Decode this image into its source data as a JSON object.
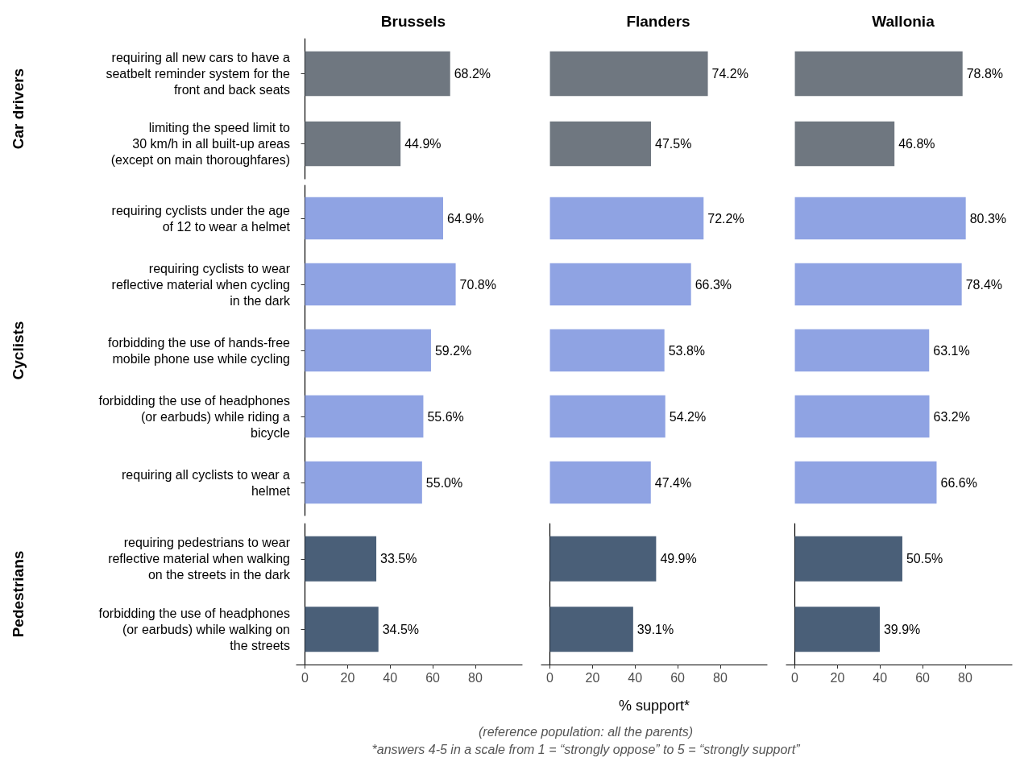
{
  "chart_data": [
    {
      "type": "bar",
      "orientation": "horizontal",
      "title": "Brussels",
      "ylabel": "Car drivers",
      "tick_labels": "y",
      "categories": [
        "requiring all new cars to have a\nseatbelt reminder system for the\nfront and back seats",
        "limiting the speed limit to\n30 km/h in all built-up areas\n(except on main thoroughfares)"
      ],
      "series": [
        {
          "color": "#6f7780",
          "values": [
            68.2,
            44.9
          ],
          "value_labels": [
            "68.2%",
            "44.9%"
          ]
        }
      ]
    },
    {
      "type": "bar",
      "orientation": "horizontal",
      "title": "Flanders",
      "tick_labels": false,
      "categories": [
        null,
        null
      ],
      "series": [
        {
          "color": "#6f7780",
          "values": [
            74.2,
            47.5
          ],
          "value_labels": [
            "74.2%",
            "47.5%"
          ]
        }
      ]
    },
    {
      "type": "bar",
      "orientation": "horizontal",
      "title": "Wallonia",
      "tick_labels": false,
      "categories": [
        null,
        null
      ],
      "series": [
        {
          "color": "#6f7780",
          "values": [
            78.8,
            46.8
          ],
          "value_labels": [
            "78.8%",
            "46.8%"
          ]
        }
      ]
    },
    {
      "type": "bar",
      "orientation": "horizontal",
      "ylabel": "Cyclists",
      "tick_labels": "y",
      "categories": [
        "requiring cyclists under the age\nof 12 to wear a helmet",
        "requiring cyclists to wear\nreflective material when cycling\nin the dark",
        "forbidding the use of hands-free\nmobile phone use while cycling",
        "forbidding the use of headphones\n(or earbuds) while riding a\nbicycle",
        "requiring all cyclists to wear a\nhelmet"
      ],
      "series": [
        {
          "color": "#8fa3e3",
          "values": [
            64.9,
            70.8,
            59.2,
            55.6,
            55.0
          ],
          "value_labels": [
            "64.9%",
            "70.8%",
            "59.2%",
            "55.6%",
            "55.0%"
          ]
        }
      ]
    },
    {
      "type": "bar",
      "orientation": "horizontal",
      "tick_labels": false,
      "categories": [
        null,
        null,
        null,
        null,
        null
      ],
      "series": [
        {
          "color": "#8fa3e3",
          "values": [
            72.2,
            66.3,
            53.8,
            54.2,
            47.4
          ],
          "value_labels": [
            "72.2%",
            "66.3%",
            "53.8%",
            "54.2%",
            "47.4%"
          ]
        }
      ]
    },
    {
      "type": "bar",
      "orientation": "horizontal",
      "tick_labels": false,
      "categories": [
        null,
        null,
        null,
        null,
        null
      ],
      "series": [
        {
          "color": "#8fa3e3",
          "values": [
            80.3,
            78.4,
            63.1,
            63.2,
            66.6
          ],
          "value_labels": [
            "80.3%",
            "78.4%",
            "63.1%",
            "63.2%",
            "66.6%"
          ]
        }
      ]
    },
    {
      "type": "bar",
      "orientation": "horizontal",
      "ylabel": "Pedestrians",
      "categories": [
        "requiring pedestrians to wear\nreflective material when walking\non the streets in the dark",
        "forbidding the use of headphones\n(or earbuds) while walking on\nthe streets"
      ],
      "xlim": [
        -4,
        102
      ],
      "xticks": [
        0,
        20,
        40,
        60,
        80
      ],
      "series": [
        {
          "color": "#4a5f78",
          "values": [
            33.5,
            34.5
          ],
          "value_labels": [
            "33.5%",
            "34.5%"
          ]
        }
      ]
    },
    {
      "type": "bar",
      "orientation": "horizontal",
      "xlabel": "% support*",
      "tick_labels": "x",
      "categories": [
        null,
        null
      ],
      "xlim": [
        -4,
        102
      ],
      "xticks": [
        0,
        20,
        40,
        60,
        80
      ],
      "series": [
        {
          "color": "#4a5f78",
          "values": [
            49.9,
            39.1
          ],
          "value_labels": [
            "49.9%",
            "39.1%"
          ]
        }
      ]
    },
    {
      "type": "bar",
      "orientation": "horizontal",
      "tick_labels": "x",
      "categories": [
        null,
        null
      ],
      "xlim": [
        -4,
        102
      ],
      "xticks": [
        0,
        20,
        40,
        60,
        80
      ],
      "series": [
        {
          "color": "#4a5f78",
          "values": [
            50.5,
            39.9
          ],
          "value_labels": [
            "50.5%",
            "39.9%"
          ]
        }
      ]
    },
    {
      "type": "other",
      "annotations": [
        "(reference population: all the parents)",
        "*answers 4-5 in a scale from 1 = “strongly oppose” to 5 = “strongly support”"
      ]
    }
  ]
}
